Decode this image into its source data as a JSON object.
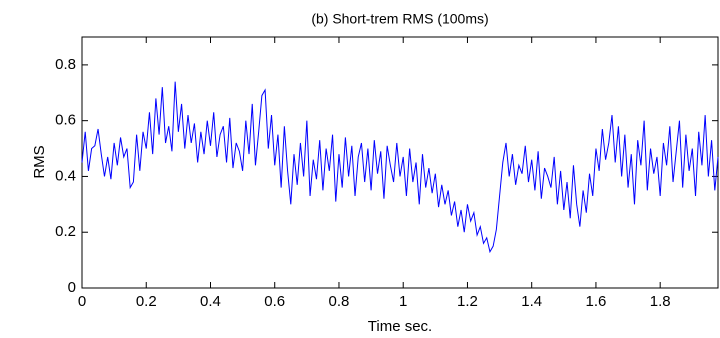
{
  "chart_data": {
    "type": "line",
    "title": "(b) Short-trem RMS (100ms)",
    "xlabel": "Time sec.",
    "ylabel": "RMS",
    "color": "#0000ff",
    "xlim": [
      0,
      1.98
    ],
    "ylim": [
      0,
      0.9
    ],
    "xticks": [
      0,
      0.2,
      0.4,
      0.6,
      0.8,
      1,
      1.2,
      1.4,
      1.6,
      1.8
    ],
    "yticks": [
      0,
      0.2,
      0.4,
      0.6,
      0.8
    ],
    "x": [
      0,
      0.01,
      0.02,
      0.03,
      0.04,
      0.05,
      0.06,
      0.07,
      0.08,
      0.09,
      0.1,
      0.11,
      0.12,
      0.13,
      0.14,
      0.15,
      0.16,
      0.17,
      0.18,
      0.19,
      0.2,
      0.21,
      0.22,
      0.23,
      0.24,
      0.25,
      0.26,
      0.27,
      0.28,
      0.29,
      0.3,
      0.31,
      0.32,
      0.33,
      0.34,
      0.35,
      0.36,
      0.37,
      0.38,
      0.39,
      0.4,
      0.41,
      0.42,
      0.43,
      0.44,
      0.45,
      0.46,
      0.47,
      0.48,
      0.49,
      0.5,
      0.51,
      0.52,
      0.53,
      0.54,
      0.55,
      0.56,
      0.57,
      0.58,
      0.59,
      0.6,
      0.61,
      0.62,
      0.63,
      0.64,
      0.65,
      0.66,
      0.67,
      0.68,
      0.69,
      0.7,
      0.71,
      0.72,
      0.73,
      0.74,
      0.75,
      0.76,
      0.77,
      0.78,
      0.79,
      0.8,
      0.81,
      0.82,
      0.83,
      0.84,
      0.85,
      0.86,
      0.87,
      0.88,
      0.89,
      0.9,
      0.91,
      0.92,
      0.93,
      0.94,
      0.95,
      0.96,
      0.97,
      0.98,
      0.99,
      1,
      1.01,
      1.02,
      1.03,
      1.04,
      1.05,
      1.06,
      1.07,
      1.08,
      1.09,
      1.1,
      1.11,
      1.12,
      1.13,
      1.14,
      1.15,
      1.16,
      1.17,
      1.18,
      1.19,
      1.2,
      1.21,
      1.22,
      1.23,
      1.24,
      1.25,
      1.26,
      1.27,
      1.28,
      1.29,
      1.3,
      1.31,
      1.32,
      1.33,
      1.34,
      1.35,
      1.36,
      1.37,
      1.38,
      1.39,
      1.4,
      1.41,
      1.42,
      1.43,
      1.44,
      1.45,
      1.46,
      1.47,
      1.48,
      1.49,
      1.5,
      1.51,
      1.52,
      1.53,
      1.54,
      1.55,
      1.56,
      1.57,
      1.58,
      1.59,
      1.6,
      1.61,
      1.62,
      1.63,
      1.64,
      1.65,
      1.66,
      1.67,
      1.68,
      1.69,
      1.7,
      1.71,
      1.72,
      1.73,
      1.74,
      1.75,
      1.76,
      1.77,
      1.78,
      1.79,
      1.8,
      1.81,
      1.82,
      1.83,
      1.84,
      1.85,
      1.86,
      1.87,
      1.88,
      1.89,
      1.9,
      1.91,
      1.92,
      1.93,
      1.94,
      1.95,
      1.96,
      1.97,
      1.98
    ],
    "values": [
      0.45,
      0.56,
      0.42,
      0.5,
      0.51,
      0.57,
      0.48,
      0.4,
      0.47,
      0.39,
      0.52,
      0.44,
      0.54,
      0.47,
      0.5,
      0.36,
      0.38,
      0.55,
      0.42,
      0.56,
      0.5,
      0.63,
      0.48,
      0.68,
      0.55,
      0.72,
      0.52,
      0.58,
      0.49,
      0.74,
      0.56,
      0.66,
      0.5,
      0.62,
      0.52,
      0.59,
      0.45,
      0.56,
      0.48,
      0.6,
      0.51,
      0.63,
      0.47,
      0.55,
      0.58,
      0.45,
      0.61,
      0.43,
      0.52,
      0.49,
      0.42,
      0.6,
      0.48,
      0.66,
      0.44,
      0.56,
      0.69,
      0.71,
      0.5,
      0.62,
      0.44,
      0.55,
      0.36,
      0.58,
      0.42,
      0.3,
      0.48,
      0.37,
      0.52,
      0.4,
      0.6,
      0.33,
      0.46,
      0.39,
      0.53,
      0.35,
      0.5,
      0.42,
      0.55,
      0.31,
      0.48,
      0.36,
      0.54,
      0.4,
      0.51,
      0.33,
      0.47,
      0.52,
      0.38,
      0.5,
      0.35,
      0.53,
      0.41,
      0.49,
      0.32,
      0.51,
      0.44,
      0.38,
      0.52,
      0.4,
      0.47,
      0.33,
      0.5,
      0.38,
      0.45,
      0.3,
      0.48,
      0.36,
      0.43,
      0.34,
      0.41,
      0.29,
      0.37,
      0.3,
      0.35,
      0.26,
      0.31,
      0.22,
      0.28,
      0.2,
      0.3,
      0.24,
      0.27,
      0.19,
      0.22,
      0.16,
      0.18,
      0.13,
      0.15,
      0.21,
      0.33,
      0.45,
      0.52,
      0.4,
      0.48,
      0.37,
      0.44,
      0.41,
      0.51,
      0.38,
      0.46,
      0.35,
      0.49,
      0.32,
      0.43,
      0.4,
      0.36,
      0.47,
      0.3,
      0.42,
      0.28,
      0.38,
      0.25,
      0.44,
      0.3,
      0.22,
      0.35,
      0.27,
      0.41,
      0.33,
      0.5,
      0.42,
      0.57,
      0.46,
      0.52,
      0.62,
      0.45,
      0.58,
      0.4,
      0.55,
      0.36,
      0.48,
      0.3,
      0.53,
      0.44,
      0.6,
      0.35,
      0.5,
      0.41,
      0.47,
      0.33,
      0.52,
      0.44,
      0.58,
      0.38,
      0.49,
      0.6,
      0.36,
      0.55,
      0.42,
      0.5,
      0.33,
      0.56,
      0.44,
      0.62,
      0.4,
      0.53,
      0.35,
      0.47
    ]
  }
}
